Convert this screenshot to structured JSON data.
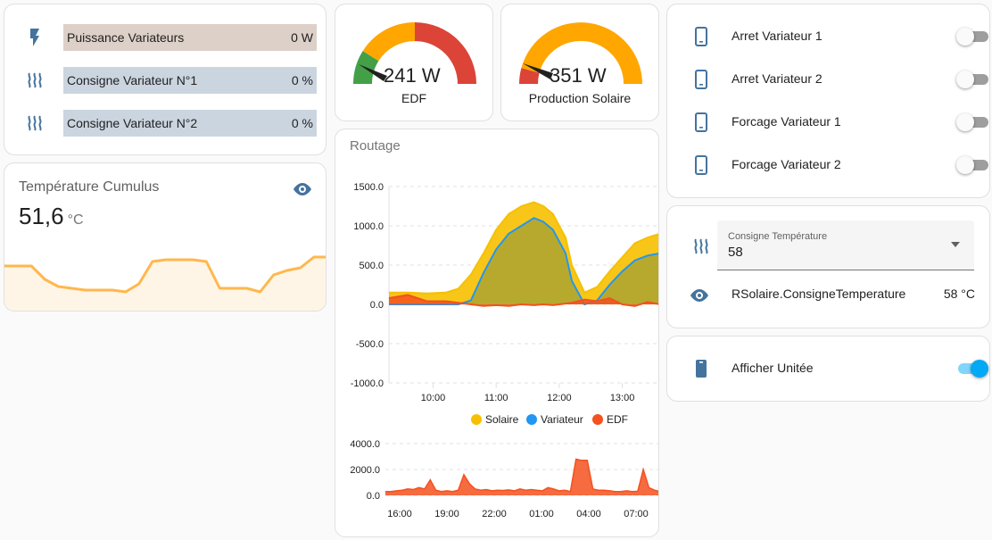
{
  "colors": {
    "icon_blue": "#44739e",
    "power_bar": "#ddd0c8",
    "consigne_bar": "#cbd5e0",
    "solaire": "#f6c000",
    "variateur": "#2196f3",
    "edf": "#f4511e",
    "gauge_green": "#43a047",
    "gauge_orange": "#ffa600",
    "gauge_red": "#db4437",
    "toggle_on": "#03a9f4"
  },
  "entities": [
    {
      "icon": "flash-icon",
      "label": "Puissance Variateurs",
      "value": "0 W"
    },
    {
      "icon": "heat-wave-icon",
      "label": "Consigne Variateur N°1",
      "value": "0 %"
    },
    {
      "icon": "heat-wave-icon",
      "label": "Consigne Variateur N°2",
      "value": "0 %"
    }
  ],
  "temperature": {
    "title": "Température Cumulus",
    "value": "51,6",
    "unit": "°C",
    "icon": "eye-icon"
  },
  "gauges": [
    {
      "name": "EDF",
      "value_text": "241 W",
      "value": 241,
      "min": 0,
      "max": 4000
    },
    {
      "name": "Production Solaire",
      "value_text": "351 W",
      "value": 351,
      "min": 0,
      "max": 4000
    }
  ],
  "routage": {
    "title": "Routage",
    "legend": [
      "Solaire",
      "Variateur",
      "EDF"
    ]
  },
  "chart_data": [
    {
      "type": "area",
      "title": "Routage",
      "x_tick_labels": [
        "10:00",
        "11:00",
        "12:00",
        "13:00"
      ],
      "y_tick_labels": [
        "1500.0",
        "1000.0",
        "500.0",
        "0.0",
        "-500.0",
        "-1000.0"
      ],
      "ylim": [
        -1000,
        1500
      ],
      "x_range_hours": [
        9.3,
        13.6
      ],
      "series": [
        {
          "name": "Solaire",
          "x": [
            9.3,
            9.6,
            9.9,
            10.2,
            10.4,
            10.6,
            10.8,
            11.0,
            11.2,
            11.4,
            11.6,
            11.75,
            11.9,
            12.1,
            12.2,
            12.4,
            12.6,
            12.8,
            13.0,
            13.2,
            13.4,
            13.6
          ],
          "values": [
            150,
            150,
            140,
            150,
            200,
            380,
            650,
            950,
            1150,
            1250,
            1300,
            1250,
            1150,
            850,
            500,
            150,
            220,
            420,
            600,
            780,
            850,
            900
          ]
        },
        {
          "name": "Variateur",
          "x": [
            9.3,
            9.6,
            9.9,
            10.2,
            10.4,
            10.6,
            10.8,
            11.0,
            11.2,
            11.4,
            11.6,
            11.75,
            11.9,
            12.1,
            12.2,
            12.4,
            12.6,
            12.8,
            13.0,
            13.2,
            13.4,
            13.6
          ],
          "values": [
            0,
            0,
            0,
            0,
            0,
            50,
            400,
            700,
            900,
            1000,
            1100,
            1050,
            950,
            650,
            300,
            0,
            50,
            250,
            420,
            560,
            620,
            650
          ]
        },
        {
          "name": "EDF",
          "x": [
            9.3,
            9.6,
            9.9,
            10.2,
            10.4,
            10.6,
            10.8,
            11.0,
            11.2,
            11.4,
            11.6,
            11.75,
            11.9,
            12.1,
            12.2,
            12.4,
            12.6,
            12.8,
            13.0,
            13.2,
            13.4,
            13.6
          ],
          "values": [
            80,
            120,
            40,
            40,
            20,
            0,
            -20,
            -10,
            -20,
            0,
            -10,
            0,
            -10,
            10,
            20,
            60,
            40,
            80,
            0,
            -20,
            30,
            0
          ]
        }
      ]
    },
    {
      "type": "area",
      "title": "",
      "x_tick_labels": [
        "16:00",
        "19:00",
        "22:00",
        "01:00",
        "04:00",
        "07:00"
      ],
      "y_tick_labels": [
        "4000.0",
        "2000.0",
        "0.0"
      ],
      "ylim": [
        0,
        4000
      ],
      "series": [
        {
          "name": "EDF",
          "values": [
            300,
            300,
            350,
            400,
            500,
            450,
            600,
            500,
            1200,
            400,
            300,
            350,
            300,
            400,
            1600,
            900,
            500,
            400,
            450,
            350,
            400,
            380,
            420,
            350,
            500,
            400,
            450,
            400,
            350,
            600,
            500,
            350,
            400,
            300,
            2800,
            2700,
            2700,
            500,
            400,
            400,
            350,
            300,
            300,
            350,
            300,
            320,
            2000,
            600,
            400,
            300
          ]
        }
      ]
    }
  ],
  "switches": [
    {
      "icon": "cellphone-icon",
      "label": "Arret Variateur 1",
      "on": false
    },
    {
      "icon": "cellphone-icon",
      "label": "Arret Variateur 2",
      "on": false
    },
    {
      "icon": "cellphone-icon",
      "label": "Forcage Variateur 1",
      "on": false
    },
    {
      "icon": "cellphone-icon",
      "label": "Forcage Variateur 2",
      "on": false
    }
  ],
  "consigne": {
    "select_label": "Consigne Température",
    "select_value": "58",
    "attr_label": "RSolaire.ConsigneTemperature",
    "attr_value": "58 °C"
  },
  "afficher": {
    "label": "Afficher Unitée",
    "on": true
  },
  "temperature_history": [
    48.5,
    48.5,
    48.5,
    47,
    46.2,
    46,
    45.8,
    45.8,
    45.8,
    45.6,
    46.5,
    49,
    49.2,
    49.2,
    49.2,
    49,
    46,
    46,
    46,
    45.6,
    47.5,
    48,
    48.3,
    49.5,
    49.5
  ]
}
